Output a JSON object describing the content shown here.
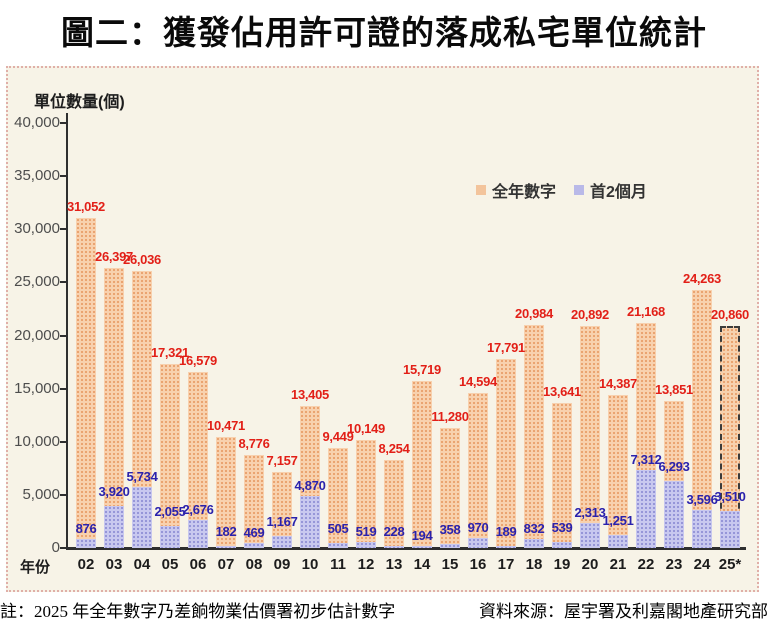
{
  "title": "圖二：獲發佔用許可證的落成私宅單位統計",
  "chart": {
    "y_axis_label": "單位數量(個)",
    "x_axis_caption": "年份",
    "legend": {
      "full_year_label": "全年數字",
      "first_two_months_label": "首2個月"
    }
  },
  "chart_data": {
    "type": "bar",
    "title": "圖二：獲發佔用許可證的落成私宅單位統計",
    "xlabel": "年份",
    "ylabel": "單位數量(個)",
    "ylim": [
      0,
      40000
    ],
    "ytick_step": 5000,
    "grid": false,
    "legend_position": "upper-right-inside",
    "categories": [
      "02",
      "03",
      "04",
      "05",
      "06",
      "07",
      "08",
      "09",
      "10",
      "11",
      "12",
      "13",
      "14",
      "15",
      "16",
      "17",
      "18",
      "19",
      "20",
      "21",
      "22",
      "23",
      "24",
      "25*"
    ],
    "series": [
      {
        "name": "全年數字",
        "color": "#f3c49c",
        "label_color": "#e21f17",
        "values": [
          31052,
          26397,
          26036,
          17321,
          16579,
          10471,
          8776,
          7157,
          13405,
          9449,
          10149,
          8254,
          15719,
          11280,
          14594,
          17791,
          20984,
          13641,
          20892,
          14387,
          21168,
          13851,
          24263,
          20860
        ]
      },
      {
        "name": "首2個月",
        "color": "#b9b9e8",
        "label_color": "#2a22ad",
        "values": [
          876,
          3920,
          5734,
          2055,
          2676,
          182,
          469,
          1167,
          4870,
          505,
          519,
          228,
          194,
          358,
          970,
          189,
          832,
          539,
          2313,
          1251,
          7312,
          6293,
          3596,
          3510
        ]
      }
    ],
    "annotations": {
      "dashed_outline_category": "25*",
      "dashed_outline_series": "全年數字"
    }
  },
  "footer": {
    "note": "註：2025 年全年數字乃差餉物業估價署初步估計數字",
    "source": "資料來源：屋宇署及利嘉閣地產研究部"
  },
  "colors": {
    "panel_background": "#f7f3e7",
    "panel_border": "#e0afa8",
    "bar_full_year": "#f3c49c",
    "bar_first_two_months": "#b9b9e8",
    "value_label_full_year": "#e21f17",
    "value_label_first_two_months": "#2a22ad",
    "axis": "#2f2f2f"
  }
}
